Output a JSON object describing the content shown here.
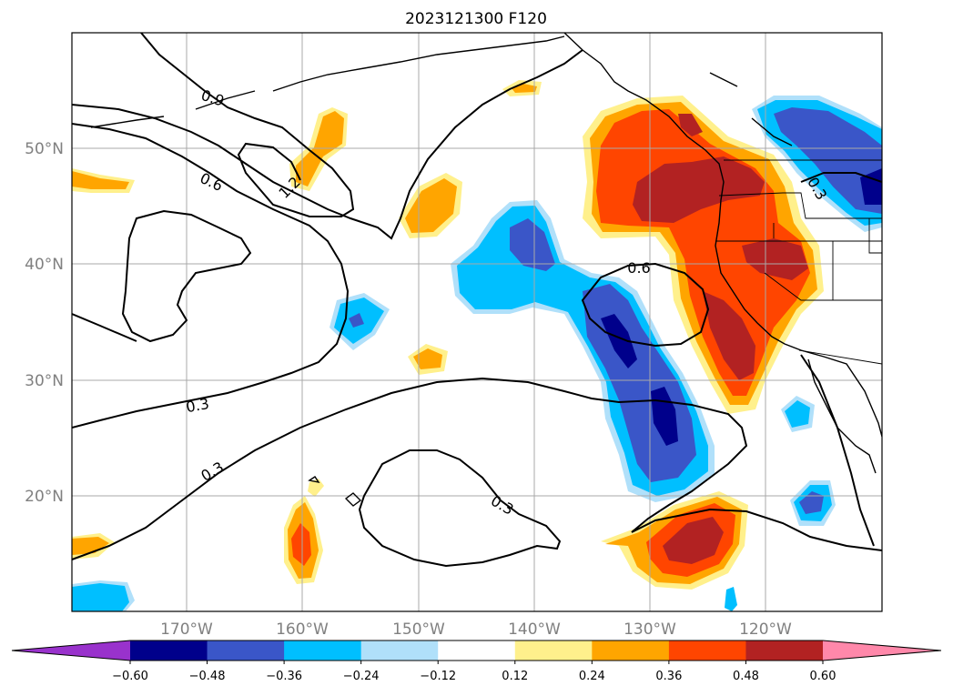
{
  "title": "2023121300 F120",
  "map": {
    "lat_labels": [
      "50°N",
      "40°N",
      "30°N",
      "20°N"
    ],
    "lon_labels": [
      "170°W",
      "160°W",
      "150°W",
      "140°W",
      "130°W",
      "120°W"
    ],
    "contour_labels": [
      "0.9",
      "0.6",
      "1.2",
      "0.6",
      "0.3",
      "0.3",
      "0.3",
      "0.3"
    ]
  },
  "colorbar": {
    "ticks": [
      "−0.60",
      "−0.48",
      "−0.36",
      "−0.24",
      "−0.12",
      "0.12",
      "0.24",
      "0.36",
      "0.48",
      "0.60"
    ],
    "colors": [
      "#9932cc",
      "#00008b",
      "#3a56c8",
      "#00bfff",
      "#b0e0fa",
      "#ffffff",
      "#fff08c",
      "#ffa500",
      "#ff4500",
      "#b22222",
      "#ff88aa"
    ]
  }
}
